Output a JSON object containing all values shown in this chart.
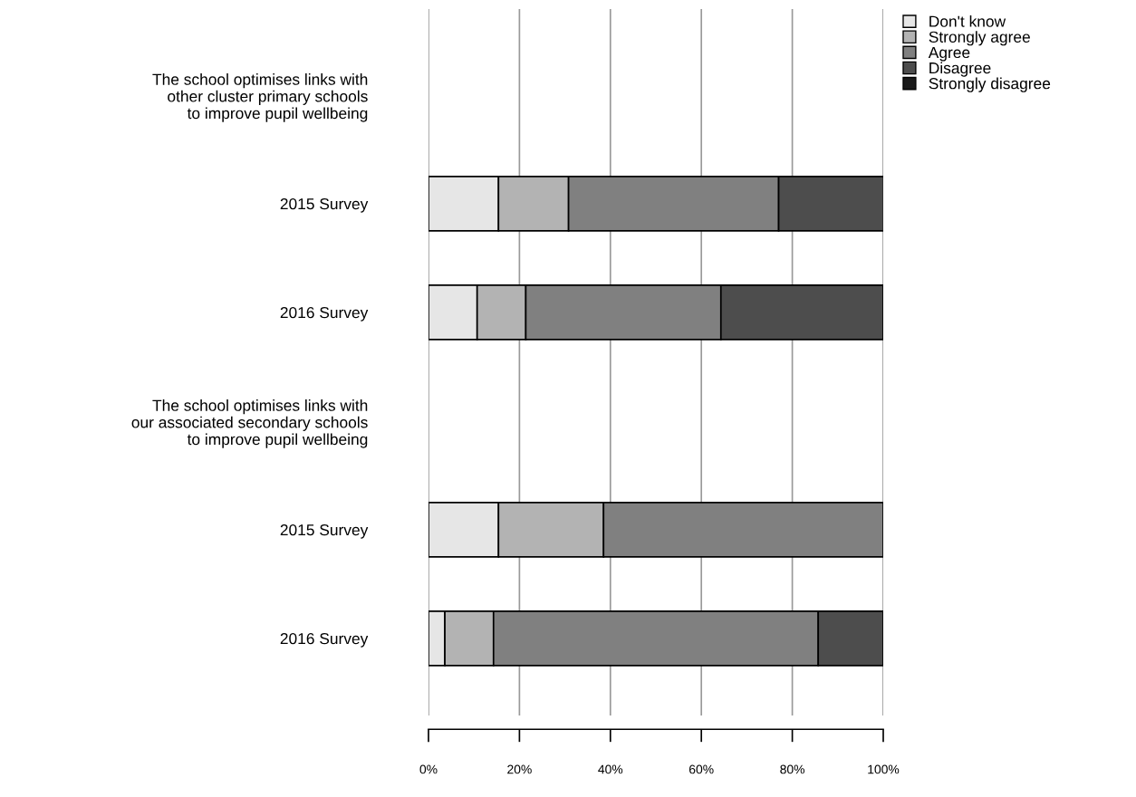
{
  "chart_data": {
    "type": "bar",
    "orientation": "horizontal",
    "stacked": true,
    "categories": [
      "The school optimises links with\nother cluster primary schools\nto improve pupil wellbeing",
      "2015 Survey",
      "2016 Survey",
      "The school optimises links with\nour associated secondary schools\nto improve pupil wellbeing",
      "2015 Survey",
      "2016 Survey"
    ],
    "series": [
      {
        "name": "Don't know",
        "color": "#e6e6e6",
        "values": [
          null,
          15.4,
          10.7,
          null,
          15.4,
          3.6
        ]
      },
      {
        "name": "Strongly agree",
        "color": "#b3b3b3",
        "values": [
          null,
          15.4,
          10.7,
          null,
          23.1,
          10.7
        ]
      },
      {
        "name": "Agree",
        "color": "#808080",
        "values": [
          null,
          46.2,
          42.9,
          null,
          61.5,
          71.4
        ]
      },
      {
        "name": "Disagree",
        "color": "#4d4d4d",
        "values": [
          null,
          23.1,
          35.7,
          null,
          null,
          14.3
        ]
      },
      {
        "name": "Strongly disagree",
        "color": "#1a1a1a",
        "values": [
          null,
          null,
          null,
          null,
          null,
          null
        ]
      }
    ],
    "xlim": [
      0,
      100
    ],
    "xticks": [
      {
        "value": 0,
        "label": "0%"
      },
      {
        "value": 20,
        "label": "20%"
      },
      {
        "value": 40,
        "label": "40%"
      },
      {
        "value": 60,
        "label": "60%"
      },
      {
        "value": 80,
        "label": "80%"
      },
      {
        "value": 100,
        "label": "100%"
      }
    ],
    "grid": "x",
    "legend": "top right"
  }
}
